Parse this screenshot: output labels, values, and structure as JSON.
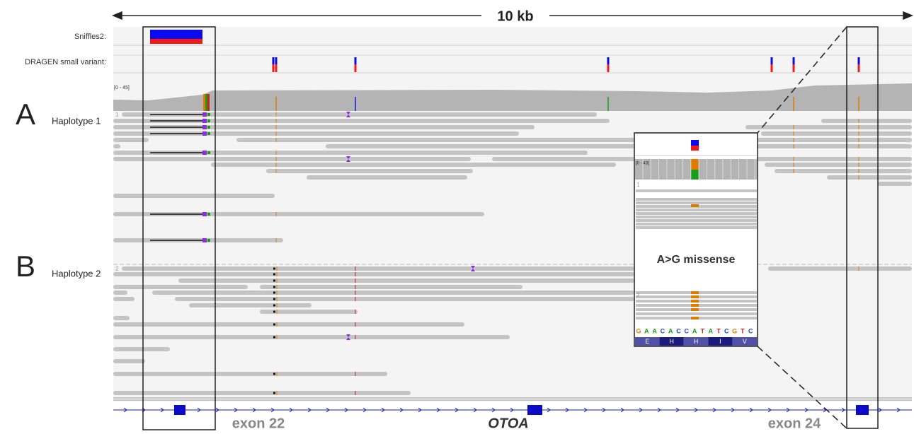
{
  "scale_label": "10 kb",
  "tracks": {
    "sniffles": "Sniffles2:",
    "dragen": "DRAGEN small variant:",
    "coverage_range": "[0 - 45]"
  },
  "panels": [
    {
      "letter": "A",
      "label": "Haplotype 1",
      "group": "1"
    },
    {
      "letter": "B",
      "label": "Haplotype 2",
      "group": "2"
    }
  ],
  "inset": {
    "coverage_range": "[0 - 43]",
    "groups": [
      "1",
      "2"
    ],
    "annotation": "A>G missense",
    "sequence": [
      {
        "base": "G",
        "color": "#e07b00"
      },
      {
        "base": "A",
        "color": "#1a9c1a"
      },
      {
        "base": "A",
        "color": "#1a9c1a"
      },
      {
        "base": "C",
        "color": "#1f3fd0"
      },
      {
        "base": "A",
        "color": "#1a9c1a"
      },
      {
        "base": "C",
        "color": "#1f3fd0"
      },
      {
        "base": "C",
        "color": "#1f3fd0"
      },
      {
        "base": "A",
        "color": "#1a9c1a"
      },
      {
        "base": "T",
        "color": "#d01f1f"
      },
      {
        "base": "A",
        "color": "#1a9c1a"
      },
      {
        "base": "T",
        "color": "#d01f1f"
      },
      {
        "base": "C",
        "color": "#1f3fd0"
      },
      {
        "base": "G",
        "color": "#e07b00"
      },
      {
        "base": "T",
        "color": "#d01f1f"
      },
      {
        "base": "C",
        "color": "#1f3fd0"
      }
    ],
    "amino_acids": [
      "E",
      "H",
      "H",
      "I",
      "V"
    ]
  },
  "gene": {
    "exon_left": "exon 22",
    "name": "OTOA",
    "exon_right": "exon 24"
  }
}
